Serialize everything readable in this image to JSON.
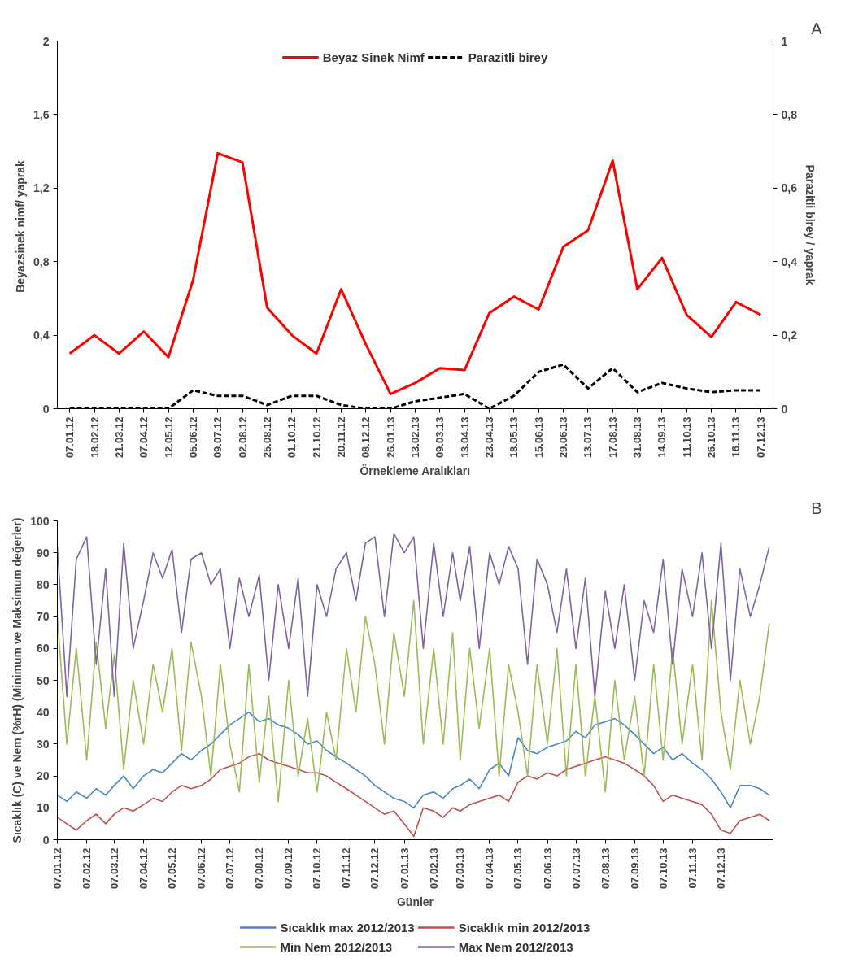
{
  "chart_data": [
    {
      "type": "line",
      "annotations": [
        "A"
      ],
      "xlabel": "Örnekleme Aralıkları",
      "ylabel": "Beyazsinek  nimf/ yaprak",
      "y2label": "Parazitli birey / yaprak",
      "categories": [
        "07.01.12",
        "18.02.12",
        "21.03.12",
        "07.04.12",
        "12.05.12",
        "05.06.12",
        "09.07.12",
        "02.08.12",
        "25.08.12",
        "01.10.12",
        "21.10.12",
        "20.11.12",
        "08.12.12",
        "26.01.13",
        "13.02.13",
        "09.03.13",
        "13.04.13",
        "23.04.13",
        "18.05.13",
        "15.06.13",
        "29.06.13",
        "13.07.13",
        "17.08.13",
        "31.08.13",
        "14.09.13",
        "11.10.13",
        "26.10.13",
        "16.11.13",
        "07.12.13"
      ],
      "ylim": [
        0,
        2
      ],
      "yticks": [
        0,
        {
          "value": 0.4,
          "label": "0,4"
        },
        {
          "value": 0.8,
          "label": "0,8"
        },
        {
          "value": 1.2,
          "label": "1,2"
        },
        {
          "value": 1.6,
          "label": "1,6"
        },
        2
      ],
      "y2lim": [
        0,
        1
      ],
      "y2ticks": [
        0,
        {
          "value": 0.2,
          "label": "0,2"
        },
        {
          "value": 0.4,
          "label": "0,4"
        },
        {
          "value": 0.6,
          "label": "0,6"
        },
        {
          "value": 0.8,
          "label": "0,8"
        },
        1
      ],
      "legend": "top",
      "marker": "none",
      "series": [
        {
          "name": "Beyaz Sinek Nimf",
          "color": "#ff0000",
          "line_style": "solid",
          "values": [
            0.3,
            0.4,
            0.3,
            0.42,
            0.28,
            0.7,
            1.39,
            1.34,
            0.55,
            0.4,
            0.3,
            0.65,
            0.35,
            0.08,
            0.14,
            0.22,
            0.21,
            0.52,
            0.61,
            0.54,
            0.88,
            0.97,
            1.35,
            0.65,
            0.82,
            0.51,
            0.39,
            0.58,
            0.51
          ]
        },
        {
          "name": "Parazitli birey",
          "color": "#000000",
          "line_style": "dashed",
          "axis": "y2",
          "values": [
            0,
            0,
            0,
            0,
            0,
            0.05,
            0.035,
            0.035,
            0.01,
            0.035,
            0.035,
            0.01,
            0,
            0,
            0.02,
            0.03,
            0.04,
            0,
            0.035,
            0.1,
            0.12,
            0.055,
            0.11,
            0.045,
            0.07,
            0.055,
            0.045,
            0.05,
            0.05
          ]
        }
      ]
    },
    {
      "type": "line",
      "annotations": [
        "B"
      ],
      "xlabel": "Günler",
      "ylabel": "Sıcaklık (C) ve Nem (%rH) (Minimum ve Maksimum değerler)",
      "x": [
        "2012-01-07",
        "2012-01-17",
        "2012-01-27",
        "2012-02-07",
        "2012-02-17",
        "2012-02-27",
        "2012-03-07",
        "2012-03-17",
        "2012-03-27",
        "2012-04-07",
        "2012-04-17",
        "2012-04-27",
        "2012-05-07",
        "2012-05-17",
        "2012-05-27",
        "2012-06-07",
        "2012-06-17",
        "2012-06-27",
        "2012-07-07",
        "2012-07-17",
        "2012-07-27",
        "2012-08-07",
        "2012-08-17",
        "2012-08-27",
        "2012-09-07",
        "2012-09-17",
        "2012-09-27",
        "2012-10-07",
        "2012-10-17",
        "2012-10-27",
        "2012-11-07",
        "2012-11-17",
        "2012-11-27",
        "2012-12-07",
        "2012-12-17",
        "2012-12-27",
        "2013-01-07",
        "2013-01-17",
        "2013-01-27",
        "2013-02-07",
        "2013-02-17",
        "2013-02-27",
        "2013-03-07",
        "2013-03-17",
        "2013-03-27",
        "2013-04-07",
        "2013-04-17",
        "2013-04-27",
        "2013-05-07",
        "2013-05-17",
        "2013-05-27",
        "2013-06-07",
        "2013-06-17",
        "2013-06-27",
        "2013-07-07",
        "2013-07-17",
        "2013-07-27",
        "2013-08-07",
        "2013-08-17",
        "2013-08-27",
        "2013-09-07",
        "2013-09-17",
        "2013-09-27",
        "2013-10-07",
        "2013-10-17",
        "2013-10-27",
        "2013-11-07",
        "2013-11-17",
        "2013-11-27",
        "2013-12-07",
        "2013-12-17",
        "2013-12-27",
        "2014-01-07",
        "2014-01-17",
        "2014-01-27"
      ],
      "xlim": [
        "2012-01-07",
        "2014-01-31"
      ],
      "xticks": [
        {
          "value": "2012-01-07",
          "label": "07.01.12"
        },
        {
          "value": "2012-02-07",
          "label": "07.02.12"
        },
        {
          "value": "2012-03-07",
          "label": "07.03.12"
        },
        {
          "value": "2012-04-07",
          "label": "07.04.12"
        },
        {
          "value": "2012-05-07",
          "label": "07.05.12"
        },
        {
          "value": "2012-06-07",
          "label": "07.06.12"
        },
        {
          "value": "2012-07-07",
          "label": "07.07.12"
        },
        {
          "value": "2012-08-07",
          "label": "07.08.12"
        },
        {
          "value": "2012-09-07",
          "label": "07.09.12"
        },
        {
          "value": "2012-10-07",
          "label": "07.10.12"
        },
        {
          "value": "2012-11-07",
          "label": "07.11.12"
        },
        {
          "value": "2012-12-07",
          "label": "07.12.12"
        },
        {
          "value": "2013-01-07",
          "label": "07.01.13"
        },
        {
          "value": "2013-02-07",
          "label": "07.02.13"
        },
        {
          "value": "2013-03-07",
          "label": "07.03.13"
        },
        {
          "value": "2013-04-07",
          "label": "07.04.13"
        },
        {
          "value": "2013-05-07",
          "label": "07.05.13"
        },
        {
          "value": "2013-06-07",
          "label": "07.06.13"
        },
        {
          "value": "2013-07-07",
          "label": "07.07.13"
        },
        {
          "value": "2013-08-07",
          "label": "07.08.13"
        },
        {
          "value": "2013-09-07",
          "label": "07.09.13"
        },
        {
          "value": "2013-10-07",
          "label": "07.10.13"
        },
        {
          "value": "2013-11-07",
          "label": "07.11.13"
        },
        {
          "value": "2013-12-07",
          "label": "07.12.13"
        }
      ],
      "ylim": [
        0,
        100
      ],
      "yticks": [
        0,
        10,
        20,
        30,
        40,
        50,
        60,
        70,
        80,
        90,
        100
      ],
      "legend": "bottom",
      "marker": "none",
      "series": [
        {
          "name": "Sıcaklık max 2012/2013",
          "color": "#4a86c8",
          "values": [
            14,
            12,
            15,
            13,
            16,
            14,
            17,
            20,
            16,
            20,
            22,
            21,
            24,
            27,
            25,
            28,
            30,
            33,
            36,
            38,
            40,
            37,
            38,
            36,
            35,
            33,
            30,
            31,
            28,
            26,
            24,
            22,
            20,
            17,
            15,
            13,
            12,
            10,
            14,
            15,
            13,
            16,
            17,
            19,
            16,
            22,
            24,
            20,
            32,
            28,
            27,
            29,
            30,
            31,
            34,
            32,
            36,
            37,
            38,
            36,
            33,
            30,
            27,
            29,
            25,
            27,
            24,
            22,
            19,
            15,
            10,
            17,
            17,
            16,
            14
          ]
        },
        {
          "name": "Sıcaklık min 2012/2013",
          "color": "#c0504d",
          "values": [
            7,
            5,
            3,
            6,
            8,
            5,
            8,
            10,
            9,
            11,
            13,
            12,
            15,
            17,
            16,
            17,
            19,
            22,
            23,
            24,
            26,
            27,
            25,
            24,
            23,
            22,
            21,
            21,
            20,
            18,
            16,
            14,
            12,
            10,
            8,
            9,
            5,
            1,
            10,
            9,
            7,
            10,
            9,
            11,
            12,
            13,
            14,
            12,
            18,
            20,
            19,
            21,
            20,
            22,
            23,
            24,
            25,
            26,
            25,
            24,
            22,
            20,
            17,
            12,
            14,
            13,
            12,
            11,
            8,
            3,
            2,
            6,
            7,
            8,
            6
          ]
        },
        {
          "name": "Min Nem 2012/2013",
          "color": "#9bbb59",
          "values": [
            70,
            30,
            60,
            25,
            62,
            35,
            58,
            22,
            50,
            30,
            55,
            40,
            60,
            28,
            62,
            45,
            20,
            55,
            30,
            15,
            55,
            18,
            45,
            12,
            50,
            20,
            38,
            15,
            40,
            25,
            60,
            40,
            70,
            55,
            30,
            65,
            45,
            75,
            30,
            60,
            30,
            65,
            25,
            60,
            35,
            60,
            20,
            55,
            40,
            20,
            55,
            30,
            60,
            20,
            55,
            20,
            45,
            15,
            50,
            25,
            45,
            20,
            55,
            25,
            60,
            30,
            55,
            25,
            75,
            40,
            22,
            50,
            30,
            45,
            68
          ]
        },
        {
          "name": "Max Nem 2012/2013",
          "color": "#8064a2",
          "values": [
            92,
            45,
            88,
            95,
            55,
            85,
            45,
            93,
            60,
            75,
            90,
            82,
            91,
            65,
            88,
            90,
            80,
            85,
            60,
            82,
            70,
            83,
            50,
            80,
            60,
            82,
            45,
            80,
            70,
            85,
            90,
            75,
            93,
            95,
            70,
            96,
            90,
            95,
            60,
            93,
            70,
            90,
            75,
            92,
            60,
            90,
            80,
            92,
            85,
            55,
            88,
            80,
            65,
            85,
            60,
            82,
            45,
            78,
            60,
            80,
            50,
            75,
            65,
            88,
            55,
            85,
            70,
            90,
            60,
            93,
            50,
            85,
            70,
            80,
            92
          ]
        }
      ]
    }
  ]
}
